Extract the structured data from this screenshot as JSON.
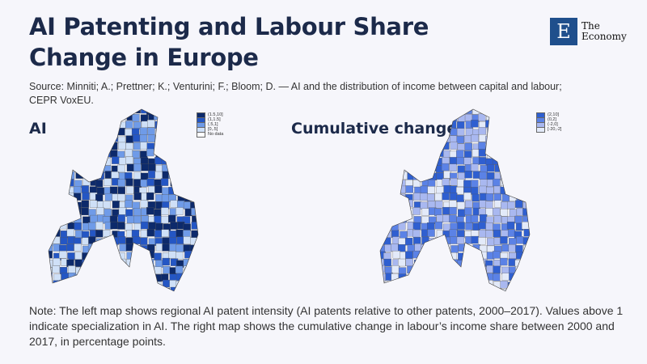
{
  "title": "AI Patenting and Labour Share Change in Europe",
  "source": "Source: Minniti; A.; Prettner; K.; Venturini; F.; Bloom; D. — AI and the distribution of income between capital and labour; CEPR VoxEU.",
  "logo": {
    "letter": "E",
    "line1": "The",
    "line2": "Economy"
  },
  "note": "Note: The left map shows regional AI patent intensity (AI patents relative to other patents, 2000–2017). Values above 1 indicate specialization in AI. The right map shows the cumulative change in labour’s income share between 2000 and 2017, in percentage points.",
  "chart_data": [
    {
      "type": "choropleth",
      "title": "AI",
      "legend": [
        {
          "label": "(1.5,10]",
          "color": "#0d2a6b"
        },
        {
          "label": "(1,1.5]",
          "color": "#2456c4"
        },
        {
          "label": "(.5,1]",
          "color": "#6f9be8"
        },
        {
          "label": "[0,.5]",
          "color": "#cfe0f7"
        },
        {
          "label": "No data",
          "color": "#ffffff"
        }
      ]
    },
    {
      "type": "choropleth",
      "title": "Cumulative change",
      "legend": [
        {
          "label": "(2,10]",
          "color": "#2f5fd0"
        },
        {
          "label": "(0,2]",
          "color": "#5b82e6"
        },
        {
          "label": "(-2,0]",
          "color": "#a9b8f0"
        },
        {
          "label": "[-20,-2]",
          "color": "#e3eaf9"
        }
      ]
    }
  ]
}
